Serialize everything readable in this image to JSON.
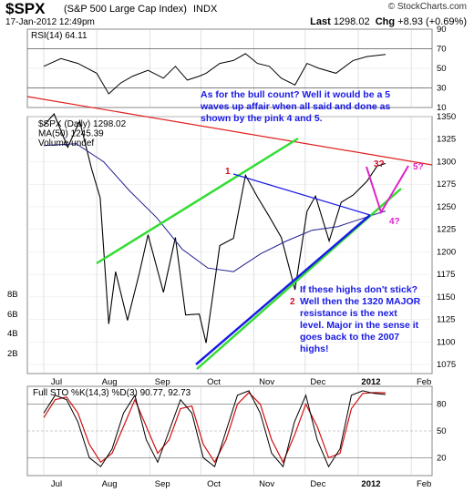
{
  "header": {
    "symbol": "$SPX",
    "name": "(S&P 500 Large Cap Index)",
    "exchange": "INDX",
    "date_time": "17-Jan-2012 12:49pm",
    "copyright": "© StockCharts.com",
    "last_label": "Last",
    "last_value": "1298.02",
    "chg_label": "Chg",
    "chg_value": "+8.93 (+0.69%)"
  },
  "annotations": {
    "bull_count": [
      "As for the bull count? Well it would be a 5",
      "waves up affair when all said and done as",
      "shown by the pink 4 and 5."
    ],
    "major_resistance": [
      "If these highs don't stick?",
      "Well then the 1320 MAJOR",
      "resistance is the next",
      "level. Major in the sense it",
      "goes back to the 2007",
      "highs!"
    ],
    "wave_labels": [
      "1",
      "2",
      "3?",
      "4?",
      "5?"
    ]
  },
  "chart_data": [
    {
      "type": "line",
      "name": "rsi",
      "legend": "RSI(14) 64.11",
      "ylim": [
        10,
        90
      ],
      "y_ticks": [
        10,
        30,
        50,
        70,
        90
      ],
      "guide_lines": [
        30,
        70
      ],
      "x": [
        "2011-07-01",
        "2011-07-11",
        "2011-07-21",
        "2011-08-01",
        "2011-08-08",
        "2011-08-15",
        "2011-08-22",
        "2011-08-31",
        "2011-09-09",
        "2011-09-16",
        "2011-09-23",
        "2011-09-30",
        "2011-10-04",
        "2011-10-12",
        "2011-10-20",
        "2011-10-27",
        "2011-11-03",
        "2011-11-10",
        "2011-11-17",
        "2011-11-25",
        "2011-12-02",
        "2011-12-09",
        "2011-12-19",
        "2011-12-29",
        "2012-01-06",
        "2012-01-17"
      ],
      "y": [
        52,
        60,
        55,
        45,
        24,
        35,
        42,
        48,
        40,
        52,
        38,
        42,
        45,
        55,
        58,
        65,
        55,
        52,
        40,
        33,
        55,
        50,
        45,
        58,
        62,
        64.11
      ]
    },
    {
      "type": "line",
      "name": "price",
      "legend": [
        "$SPX (Daily) 1298.02",
        "MA(50) 1245.39",
        "Volume undef"
      ],
      "ylim": [
        1065,
        1350
      ],
      "y_ticks": [
        1075,
        1100,
        1125,
        1150,
        1175,
        1200,
        1225,
        1250,
        1275,
        1300,
        1325,
        1350
      ],
      "volume_ticks": [
        "2B",
        "4B",
        "6B",
        "8B"
      ],
      "x_ticks": [
        "Jul",
        "Aug",
        "Sep",
        "Oct",
        "Nov",
        "Dec",
        "2012",
        "Feb"
      ],
      "series": [
        {
          "name": "$SPX",
          "x": [
            "2011-07-01",
            "2011-07-07",
            "2011-07-15",
            "2011-07-22",
            "2011-07-29",
            "2011-08-03",
            "2011-08-08",
            "2011-08-12",
            "2011-08-19",
            "2011-08-26",
            "2011-08-31",
            "2011-09-09",
            "2011-09-16",
            "2011-09-22",
            "2011-09-30",
            "2011-10-04",
            "2011-10-12",
            "2011-10-20",
            "2011-10-27",
            "2011-11-03",
            "2011-11-10",
            "2011-11-17",
            "2011-11-25",
            "2011-12-02",
            "2011-12-07",
            "2011-12-15",
            "2011-12-22",
            "2011-12-29",
            "2012-01-06",
            "2012-01-12",
            "2012-01-17"
          ],
          "y": [
            1340,
            1353,
            1316,
            1345,
            1292,
            1260,
            1120,
            1178,
            1124,
            1177,
            1219,
            1155,
            1216,
            1130,
            1131,
            1099,
            1207,
            1215,
            1285,
            1261,
            1239,
            1216,
            1158,
            1245,
            1262,
            1212,
            1255,
            1263,
            1278,
            1295,
            1298.02
          ]
        },
        {
          "name": "MA(50)",
          "x": [
            "2011-07-01",
            "2011-07-20",
            "2011-08-05",
            "2011-08-20",
            "2011-09-05",
            "2011-09-20",
            "2011-10-05",
            "2011-10-20",
            "2011-11-05",
            "2011-11-20",
            "2011-12-05",
            "2011-12-20",
            "2012-01-05",
            "2012-01-17"
          ],
          "y": [
            1318,
            1320,
            1300,
            1268,
            1238,
            1203,
            1182,
            1178,
            1198,
            1212,
            1224,
            1228,
            1238,
            1245.39
          ]
        }
      ]
    },
    {
      "type": "line",
      "name": "full_sto",
      "legend": "Full STO %K(14,3) %D(3) 90.77, 92.73",
      "ylim": [
        0,
        100
      ],
      "y_ticks": [
        20,
        50,
        80
      ],
      "x_ticks": [
        "Jul",
        "Aug",
        "Sep",
        "Oct",
        "Nov",
        "Dec",
        "2012",
        "Feb"
      ],
      "series": [
        {
          "name": "%K",
          "y": [
            70,
            90,
            85,
            60,
            20,
            10,
            30,
            70,
            90,
            40,
            15,
            50,
            85,
            70,
            20,
            10,
            50,
            90,
            95,
            70,
            25,
            10,
            60,
            90,
            40,
            10,
            30,
            90,
            95,
            92,
            90.77
          ]
        },
        {
          "name": "%D",
          "y": [
            65,
            85,
            88,
            70,
            35,
            15,
            25,
            55,
            85,
            55,
            25,
            40,
            75,
            78,
            35,
            15,
            40,
            80,
            93,
            80,
            40,
            15,
            45,
            80,
            55,
            20,
            25,
            75,
            92,
            93,
            92.73
          ]
        }
      ]
    }
  ],
  "colors": {
    "price_line": "#000000",
    "ma": "#1f1f8f",
    "resistance": "#e02020",
    "channel": "#33dd33",
    "trendline": "#1a1ae6",
    "projection": "#e020c8",
    "sto_d": "#d01010",
    "note_text": "#1a1ae6"
  }
}
